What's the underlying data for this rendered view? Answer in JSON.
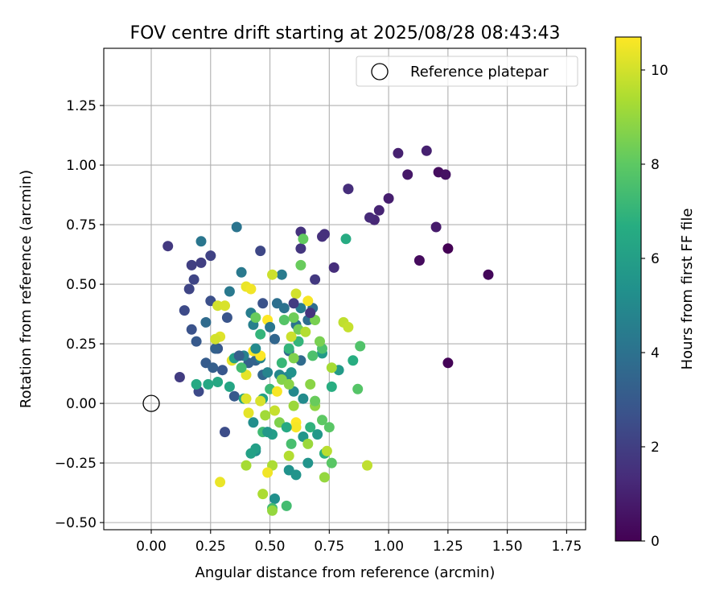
{
  "chart_data": {
    "type": "scatter",
    "title": "FOV centre drift starting at 2025/08/28 08:43:43",
    "xlabel": "Angular distance from reference (arcmin)",
    "ylabel": "Rotation from reference (arcmin)",
    "xlim": [
      -0.2,
      1.83
    ],
    "ylim": [
      -0.53,
      1.49
    ],
    "xticks": [
      0.0,
      0.25,
      0.5,
      0.75,
      1.0,
      1.25,
      1.5,
      1.75
    ],
    "xtick_labels": [
      "0.00",
      "0.25",
      "0.50",
      "0.75",
      "1.00",
      "1.25",
      "1.50",
      "1.75"
    ],
    "yticks": [
      -0.5,
      -0.25,
      0.0,
      0.25,
      0.5,
      0.75,
      1.0,
      1.25
    ],
    "ytick_labels": [
      "−0.50",
      "−0.25",
      "0.00",
      "0.25",
      "0.50",
      "0.75",
      "1.00",
      "1.25"
    ],
    "grid": true,
    "legend": {
      "position": "top-right",
      "label": "Reference platepar"
    },
    "reference_point": {
      "x": 0.0,
      "y": 0.0
    },
    "colorbar": {
      "label": "Hours from first FF file",
      "colormap": "viridis",
      "min": 0,
      "max": 10.7,
      "ticks": [
        0,
        2,
        4,
        6,
        8,
        10
      ],
      "tick_labels": [
        "0",
        "2",
        "4",
        "6",
        "8",
        "10"
      ]
    },
    "points": [
      {
        "x": 1.25,
        "y": 0.65,
        "h": 0.0
      },
      {
        "x": 1.25,
        "y": 0.17,
        "h": 0.1
      },
      {
        "x": 1.42,
        "y": 0.54,
        "h": 0.2
      },
      {
        "x": 1.13,
        "y": 0.6,
        "h": 0.3
      },
      {
        "x": 1.21,
        "y": 0.97,
        "h": 0.4
      },
      {
        "x": 1.24,
        "y": 0.96,
        "h": 0.5
      },
      {
        "x": 1.08,
        "y": 0.96,
        "h": 0.7
      },
      {
        "x": 1.2,
        "y": 0.74,
        "h": 0.8
      },
      {
        "x": 1.0,
        "y": 0.86,
        "h": 0.9
      },
      {
        "x": 1.16,
        "y": 1.06,
        "h": 1.0
      },
      {
        "x": 1.04,
        "y": 1.05,
        "h": 1.0
      },
      {
        "x": 0.96,
        "y": 0.81,
        "h": 1.1
      },
      {
        "x": 0.94,
        "y": 0.77,
        "h": 1.2
      },
      {
        "x": 0.83,
        "y": 0.9,
        "h": 1.3
      },
      {
        "x": 0.92,
        "y": 0.78,
        "h": 1.3
      },
      {
        "x": 0.77,
        "y": 0.57,
        "h": 1.4
      },
      {
        "x": 0.72,
        "y": 0.7,
        "h": 1.5
      },
      {
        "x": 0.73,
        "y": 0.71,
        "h": 1.5
      },
      {
        "x": 0.63,
        "y": 0.72,
        "h": 1.6
      },
      {
        "x": 0.63,
        "y": 0.65,
        "h": 1.7
      },
      {
        "x": 0.69,
        "y": 0.52,
        "h": 1.8
      },
      {
        "x": 0.07,
        "y": 0.66,
        "h": 1.8
      },
      {
        "x": 0.12,
        "y": 0.11,
        "h": 1.9
      },
      {
        "x": 0.17,
        "y": 0.58,
        "h": 2.0
      },
      {
        "x": 0.21,
        "y": 0.59,
        "h": 2.0
      },
      {
        "x": 0.25,
        "y": 0.62,
        "h": 2.1
      },
      {
        "x": 0.18,
        "y": 0.52,
        "h": 2.2
      },
      {
        "x": 0.46,
        "y": 0.64,
        "h": 2.3
      },
      {
        "x": 0.2,
        "y": 0.05,
        "h": 2.4
      },
      {
        "x": 0.14,
        "y": 0.39,
        "h": 2.4
      },
      {
        "x": 0.31,
        "y": -0.12,
        "h": 2.5
      },
      {
        "x": 0.25,
        "y": 0.43,
        "h": 2.6
      },
      {
        "x": 0.17,
        "y": 0.31,
        "h": 2.7
      },
      {
        "x": 0.32,
        "y": 0.36,
        "h": 2.8
      },
      {
        "x": 0.28,
        "y": 0.23,
        "h": 2.9
      },
      {
        "x": 0.3,
        "y": 0.14,
        "h": 2.9
      },
      {
        "x": 0.35,
        "y": 0.03,
        "h": 3.0
      },
      {
        "x": 0.19,
        "y": 0.26,
        "h": 3.0
      },
      {
        "x": 0.23,
        "y": 0.17,
        "h": 3.1
      },
      {
        "x": 0.26,
        "y": 0.15,
        "h": 3.2
      },
      {
        "x": 0.27,
        "y": 0.23,
        "h": 3.3
      },
      {
        "x": 0.41,
        "y": 0.17,
        "h": 3.3
      },
      {
        "x": 0.44,
        "y": 0.18,
        "h": 3.4
      },
      {
        "x": 0.47,
        "y": 0.12,
        "h": 3.5
      },
      {
        "x": 0.52,
        "y": 0.27,
        "h": 3.5
      },
      {
        "x": 0.58,
        "y": 0.22,
        "h": 3.6
      },
      {
        "x": 0.63,
        "y": 0.18,
        "h": 3.7
      },
      {
        "x": 0.66,
        "y": 0.35,
        "h": 3.8
      },
      {
        "x": 0.68,
        "y": 0.4,
        "h": 3.8
      },
      {
        "x": 0.53,
        "y": 0.42,
        "h": 3.9
      },
      {
        "x": 0.56,
        "y": 0.4,
        "h": 4.0
      },
      {
        "x": 0.61,
        "y": 0.33,
        "h": 4.1
      },
      {
        "x": 0.36,
        "y": 0.74,
        "h": 4.1
      },
      {
        "x": 0.21,
        "y": 0.68,
        "h": 4.2
      },
      {
        "x": 0.33,
        "y": 0.47,
        "h": 4.3
      },
      {
        "x": 0.38,
        "y": 0.55,
        "h": 4.3
      },
      {
        "x": 0.55,
        "y": 0.54,
        "h": 4.4
      },
      {
        "x": 0.42,
        "y": 0.38,
        "h": 4.5
      },
      {
        "x": 0.43,
        "y": 0.33,
        "h": 4.6
      },
      {
        "x": 0.39,
        "y": 0.2,
        "h": 4.6
      },
      {
        "x": 0.46,
        "y": 0.19,
        "h": 4.7
      },
      {
        "x": 0.49,
        "y": 0.13,
        "h": 4.8
      },
      {
        "x": 0.54,
        "y": 0.12,
        "h": 4.9
      },
      {
        "x": 0.57,
        "y": 0.11,
        "h": 4.9
      },
      {
        "x": 0.6,
        "y": 0.05,
        "h": 5.0
      },
      {
        "x": 0.64,
        "y": 0.02,
        "h": 5.1
      },
      {
        "x": 0.43,
        "y": -0.08,
        "h": 5.2
      },
      {
        "x": 0.44,
        "y": -0.2,
        "h": 5.2
      },
      {
        "x": 0.52,
        "y": -0.4,
        "h": 5.3
      },
      {
        "x": 0.58,
        "y": -0.28,
        "h": 5.4
      },
      {
        "x": 0.61,
        "y": -0.3,
        "h": 5.5
      },
      {
        "x": 0.66,
        "y": -0.25,
        "h": 5.5
      },
      {
        "x": 0.64,
        "y": -0.14,
        "h": 5.6
      },
      {
        "x": 0.7,
        "y": -0.13,
        "h": 5.7
      },
      {
        "x": 0.72,
        "y": 0.21,
        "h": 5.8
      },
      {
        "x": 0.79,
        "y": 0.14,
        "h": 5.8
      },
      {
        "x": 0.51,
        "y": -0.13,
        "h": 5.9
      },
      {
        "x": 0.44,
        "y": -0.19,
        "h": 6.0
      },
      {
        "x": 0.42,
        "y": -0.21,
        "h": 6.1
      },
      {
        "x": 0.47,
        "y": 0.02,
        "h": 6.1
      },
      {
        "x": 0.39,
        "y": 0.02,
        "h": 6.2
      },
      {
        "x": 0.33,
        "y": 0.07,
        "h": 6.3
      },
      {
        "x": 0.28,
        "y": 0.09,
        "h": 6.4
      },
      {
        "x": 0.24,
        "y": 0.08,
        "h": 6.4
      },
      {
        "x": 0.19,
        "y": 0.08,
        "h": 6.5
      },
      {
        "x": 0.82,
        "y": 0.69,
        "h": 6.6
      },
      {
        "x": 0.85,
        "y": 0.18,
        "h": 6.7
      },
      {
        "x": 0.76,
        "y": 0.07,
        "h": 6.7
      },
      {
        "x": 0.73,
        "y": -0.21,
        "h": 6.8
      },
      {
        "x": 0.67,
        "y": -0.1,
        "h": 6.9
      },
      {
        "x": 0.62,
        "y": 0.26,
        "h": 7.0
      },
      {
        "x": 0.58,
        "y": 0.23,
        "h": 7.0
      },
      {
        "x": 0.55,
        "y": 0.17,
        "h": 7.1
      },
      {
        "x": 0.5,
        "y": 0.06,
        "h": 7.2
      },
      {
        "x": 0.47,
        "y": -0.12,
        "h": 7.3
      },
      {
        "x": 0.51,
        "y": -0.44,
        "h": 7.3
      },
      {
        "x": 0.57,
        "y": -0.43,
        "h": 7.4
      },
      {
        "x": 0.59,
        "y": -0.17,
        "h": 7.5
      },
      {
        "x": 0.68,
        "y": 0.2,
        "h": 7.6
      },
      {
        "x": 0.72,
        "y": 0.23,
        "h": 7.6
      },
      {
        "x": 0.88,
        "y": 0.24,
        "h": 7.7
      },
      {
        "x": 0.87,
        "y": 0.06,
        "h": 7.8
      },
      {
        "x": 0.76,
        "y": -0.25,
        "h": 7.9
      },
      {
        "x": 0.75,
        "y": -0.1,
        "h": 7.9
      },
      {
        "x": 0.72,
        "y": -0.07,
        "h": 8.0
      },
      {
        "x": 0.64,
        "y": 0.69,
        "h": 8.1
      },
      {
        "x": 0.63,
        "y": 0.58,
        "h": 8.2
      },
      {
        "x": 0.44,
        "y": 0.36,
        "h": 8.2
      },
      {
        "x": 0.6,
        "y": 0.36,
        "h": 8.3
      },
      {
        "x": 0.62,
        "y": 0.31,
        "h": 8.4
      },
      {
        "x": 0.69,
        "y": 0.35,
        "h": 8.5
      },
      {
        "x": 0.71,
        "y": 0.26,
        "h": 8.5
      },
      {
        "x": 0.6,
        "y": 0.19,
        "h": 8.6
      },
      {
        "x": 0.55,
        "y": 0.1,
        "h": 8.7
      },
      {
        "x": 0.58,
        "y": 0.08,
        "h": 8.8
      },
      {
        "x": 0.67,
        "y": 0.08,
        "h": 8.8
      },
      {
        "x": 0.69,
        "y": -0.01,
        "h": 8.9
      },
      {
        "x": 0.73,
        "y": -0.31,
        "h": 9.0
      },
      {
        "x": 0.66,
        "y": -0.17,
        "h": 9.1
      },
      {
        "x": 0.6,
        "y": -0.01,
        "h": 9.1
      },
      {
        "x": 0.48,
        "y": -0.05,
        "h": 9.2
      },
      {
        "x": 0.4,
        "y": -0.26,
        "h": 9.3
      },
      {
        "x": 0.47,
        "y": -0.38,
        "h": 9.4
      },
      {
        "x": 0.51,
        "y": -0.26,
        "h": 9.4
      },
      {
        "x": 0.58,
        "y": -0.22,
        "h": 9.5
      },
      {
        "x": 0.74,
        "y": -0.2,
        "h": 9.6
      },
      {
        "x": 0.91,
        "y": -0.26,
        "h": 9.7
      },
      {
        "x": 0.81,
        "y": 0.34,
        "h": 9.7
      },
      {
        "x": 0.83,
        "y": 0.32,
        "h": 9.8
      },
      {
        "x": 0.51,
        "y": 0.54,
        "h": 9.9
      },
      {
        "x": 0.61,
        "y": 0.46,
        "h": 10.0
      },
      {
        "x": 0.28,
        "y": 0.41,
        "h": 10.0
      },
      {
        "x": 0.31,
        "y": 0.41,
        "h": 10.1
      },
      {
        "x": 0.29,
        "y": 0.28,
        "h": 10.2
      },
      {
        "x": 0.34,
        "y": 0.18,
        "h": 10.3
      },
      {
        "x": 0.4,
        "y": 0.12,
        "h": 10.3
      },
      {
        "x": 0.4,
        "y": 0.49,
        "h": 10.4
      },
      {
        "x": 0.42,
        "y": 0.48,
        "h": 10.5
      },
      {
        "x": 0.66,
        "y": 0.43,
        "h": 10.6
      },
      {
        "x": 0.43,
        "y": 0.22,
        "h": 10.6
      },
      {
        "x": 0.46,
        "y": 0.2,
        "h": 10.7
      },
      {
        "x": 0.49,
        "y": 0.35,
        "h": 10.7
      },
      {
        "x": 0.53,
        "y": 0.05,
        "h": 10.6
      },
      {
        "x": 0.61,
        "y": -0.08,
        "h": 10.7
      },
      {
        "x": 0.61,
        "y": -0.1,
        "h": 10.6
      },
      {
        "x": 0.49,
        "y": -0.29,
        "h": 10.5
      },
      {
        "x": 0.29,
        "y": -0.33,
        "h": 10.4
      },
      {
        "x": 0.41,
        "y": -0.04,
        "h": 10.3
      },
      {
        "x": 0.4,
        "y": 0.02,
        "h": 10.2
      },
      {
        "x": 0.46,
        "y": 0.01,
        "h": 10.1
      },
      {
        "x": 0.27,
        "y": 0.27,
        "h": 10.0
      },
      {
        "x": 0.59,
        "y": 0.28,
        "h": 9.9
      },
      {
        "x": 0.52,
        "y": -0.03,
        "h": 9.8
      },
      {
        "x": 0.65,
        "y": 0.3,
        "h": 9.5
      },
      {
        "x": 0.76,
        "y": 0.15,
        "h": 9.3
      },
      {
        "x": 0.51,
        "y": -0.45,
        "h": 9.0
      },
      {
        "x": 0.54,
        "y": -0.08,
        "h": 8.6
      },
      {
        "x": 0.69,
        "y": 0.01,
        "h": 8.2
      },
      {
        "x": 0.56,
        "y": 0.35,
        "h": 7.8
      },
      {
        "x": 0.38,
        "y": 0.15,
        "h": 7.4
      },
      {
        "x": 0.46,
        "y": 0.29,
        "h": 7.0
      },
      {
        "x": 0.57,
        "y": -0.1,
        "h": 6.5
      },
      {
        "x": 0.35,
        "y": 0.19,
        "h": 6.0
      },
      {
        "x": 0.49,
        "y": -0.12,
        "h": 5.7
      },
      {
        "x": 0.59,
        "y": 0.13,
        "h": 5.4
      },
      {
        "x": 0.44,
        "y": 0.23,
        "h": 5.0
      },
      {
        "x": 0.63,
        "y": 0.4,
        "h": 4.5
      },
      {
        "x": 0.5,
        "y": 0.32,
        "h": 4.2
      },
      {
        "x": 0.23,
        "y": 0.34,
        "h": 3.7
      },
      {
        "x": 0.37,
        "y": 0.2,
        "h": 3.2
      },
      {
        "x": 0.47,
        "y": 0.42,
        "h": 2.7
      },
      {
        "x": 0.16,
        "y": 0.48,
        "h": 2.2
      },
      {
        "x": 0.6,
        "y": 0.42,
        "h": 1.9
      },
      {
        "x": 0.67,
        "y": 0.38,
        "h": 1.6
      },
      {
        "x": 0.83,
        "y": 0.9,
        "h": 1.4
      }
    ]
  }
}
